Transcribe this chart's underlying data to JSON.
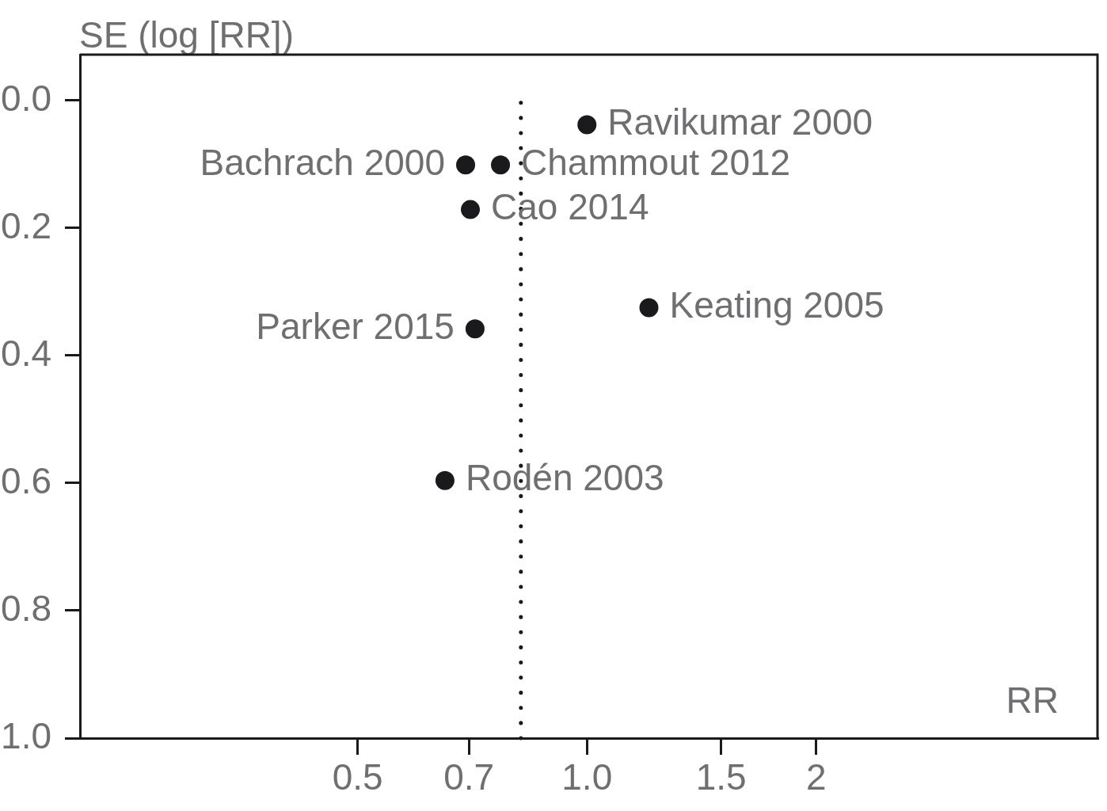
{
  "chart_data": {
    "type": "scatter",
    "xlabel": "RR",
    "ylabel": "SE (log [RR])",
    "x": [
      1.0,
      0.693,
      0.77,
      0.703,
      1.206,
      0.713,
      0.651
    ],
    "values": [
      0.038,
      0.101,
      0.101,
      0.171,
      0.325,
      0.358,
      0.596
    ],
    "color": "#1a1a1d",
    "marker": "circle",
    "log": "x",
    "xlim": [
      0.216,
      4.68
    ],
    "xticks": [
      0.5,
      0.7,
      {
        "value": 1,
        "label": "1.0"
      },
      1.5,
      2
    ],
    "ylim": [
      1,
      -0.072
    ],
    "yticks": [
      {
        "value": 0,
        "label": "0.0"
      },
      0.2,
      0.4,
      0.6,
      0.8,
      {
        "value": 1,
        "label": "1.0"
      }
    ],
    "ref_lines": [
      {
        "axis": "x",
        "value": 0.819,
        "color": "#1a1a1d",
        "line_style": "dotted"
      }
    ],
    "annotations": [
      {
        "text": "Ravikumar 2000",
        "x": 1.0,
        "y": 0.038
      },
      {
        "text": "Bachrach 2000",
        "x": 0.693,
        "y": 0.101
      },
      {
        "text": "Chammout 2012",
        "x": 0.77,
        "y": 0.101
      },
      {
        "text": "Cao 2014",
        "x": 0.703,
        "y": 0.171
      },
      {
        "text": "Keating 2005",
        "x": 1.206,
        "y": 0.325
      },
      {
        "text": "Parker 2015",
        "x": 0.713,
        "y": 0.358
      },
      {
        "text": "Rodén 2003",
        "x": 0.651,
        "y": 0.596
      }
    ]
  }
}
